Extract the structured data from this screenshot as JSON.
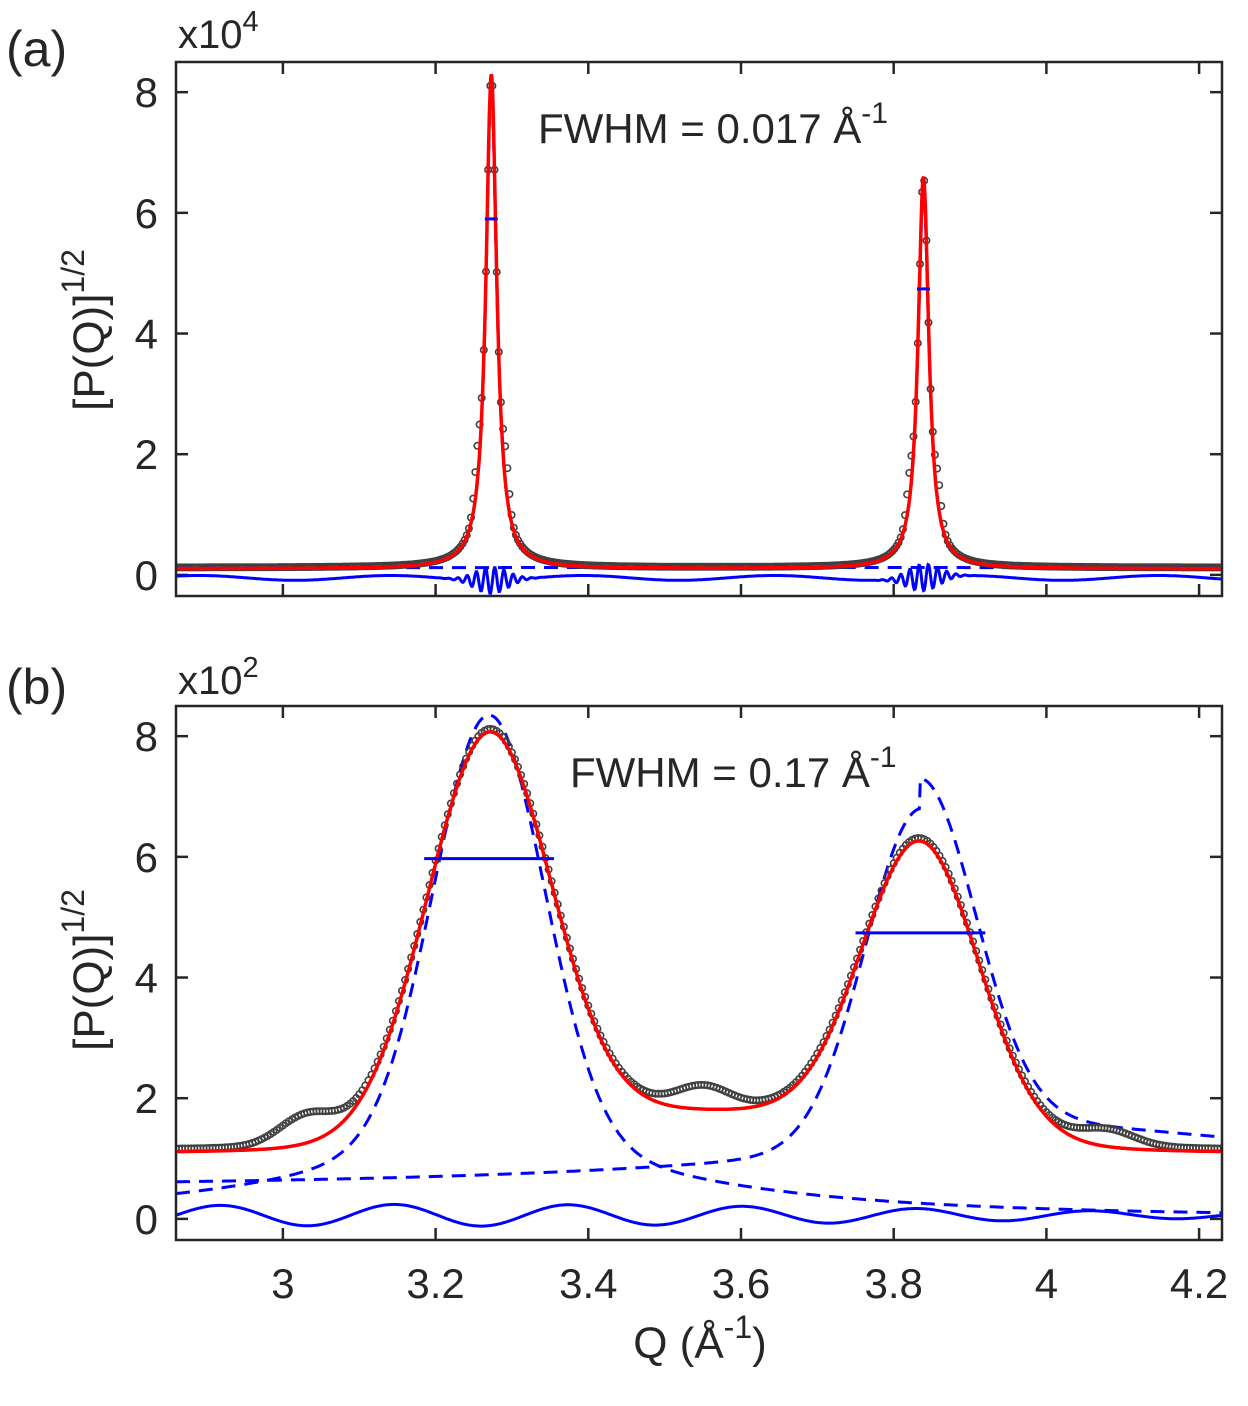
{
  "figure": {
    "xlabel": "Q (Å",
    "xlabel_sup": "-1",
    "xlabel_close": ")"
  },
  "chart_data": [
    {
      "type": "line",
      "panel_label": "(a)",
      "ylabel": "[P(Q)]",
      "ylabel_sup": "1/2",
      "multiplier_base": "x10",
      "multiplier_exp": "4",
      "annotation": "FWHM = 0.017 Å",
      "annotation_sup": "-1",
      "xlim": [
        2.86,
        4.23
      ],
      "ylim": [
        -0.35,
        8.5
      ],
      "yticks": [
        0,
        2,
        4,
        6,
        8
      ],
      "ytick_labels": [
        "0",
        "2",
        "4",
        "6",
        "8"
      ],
      "xticks": [
        3.0,
        3.2,
        3.4,
        3.6,
        3.8,
        4.0,
        4.2
      ],
      "xtick_labels": [],
      "peaks": [
        {
          "center": 3.273,
          "height": 8.3,
          "fwhm": 0.017,
          "half_max_marker": 5.9
        },
        {
          "center": 3.839,
          "height": 6.6,
          "fwhm": 0.017,
          "half_max_marker": 4.74
        }
      ],
      "series": [
        {
          "name": "data",
          "style": "circles",
          "color": "#404040"
        },
        {
          "name": "fit",
          "style": "solid",
          "color": "#ff0000"
        },
        {
          "name": "components",
          "style": "dashed",
          "color": "#0000ff"
        },
        {
          "name": "residual",
          "style": "solid",
          "color": "#0000ff"
        }
      ]
    },
    {
      "type": "line",
      "panel_label": "(b)",
      "ylabel": "[P(Q)]",
      "ylabel_sup": "1/2",
      "multiplier_base": "x10",
      "multiplier_exp": "2",
      "annotation": "FWHM = 0.17 Å",
      "annotation_sup": "-1",
      "xlim": [
        2.86,
        4.23
      ],
      "ylim": [
        -0.35,
        8.5
      ],
      "yticks": [
        0,
        2,
        4,
        6,
        8
      ],
      "ytick_labels": [
        "0",
        "2",
        "4",
        "6",
        "8"
      ],
      "xticks": [
        3.0,
        3.2,
        3.4,
        3.6,
        3.8,
        4.0,
        4.2
      ],
      "xtick_labels": [
        "3",
        "3.2",
        "3.4",
        "3.6",
        "3.8",
        "4",
        "4.2"
      ],
      "peaks": [
        {
          "center": 3.27,
          "height": 8.37,
          "fwhm": 0.17,
          "half_max_marker": 5.97
        },
        {
          "center": 3.835,
          "height": 6.7,
          "fwhm": 0.17,
          "half_max_marker": 4.74
        }
      ],
      "series": [
        {
          "name": "data",
          "style": "circles",
          "color": "#404040"
        },
        {
          "name": "fit",
          "style": "solid",
          "color": "#ff0000"
        },
        {
          "name": "components",
          "style": "dashed",
          "color": "#0000ff"
        },
        {
          "name": "residual",
          "style": "solid",
          "color": "#0000ff"
        }
      ]
    }
  ]
}
